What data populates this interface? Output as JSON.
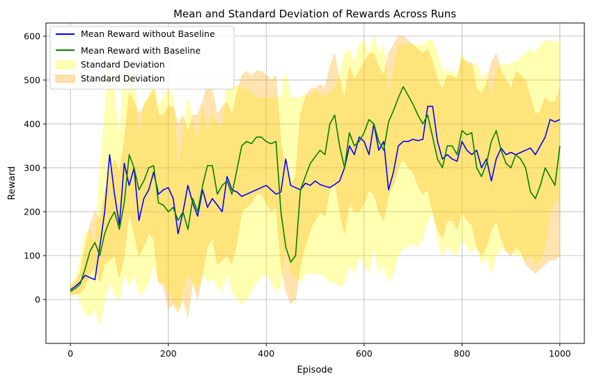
{
  "chart_data": {
    "type": "line",
    "title": "Mean and Standard Deviation of Rewards Across Runs",
    "xlabel": "Episode",
    "ylabel": "Reward",
    "xlim": [
      -50,
      1050
    ],
    "ylim": [
      -100,
      630
    ],
    "xticks": [
      0,
      200,
      400,
      600,
      800,
      1000
    ],
    "yticks": [
      0,
      100,
      200,
      300,
      400,
      500,
      600
    ],
    "grid": true,
    "legend_position": "top-left",
    "series": [
      {
        "name": "Mean Reward without Baseline",
        "kind": "line",
        "color": "#0000ff",
        "x": [
          0,
          10,
          20,
          30,
          40,
          50,
          60,
          70,
          80,
          90,
          100,
          110,
          120,
          130,
          140,
          150,
          160,
          170,
          180,
          190,
          200,
          210,
          220,
          230,
          240,
          250,
          260,
          270,
          280,
          290,
          300,
          310,
          320,
          330,
          340,
          350,
          360,
          370,
          380,
          390,
          400,
          410,
          420,
          430,
          440,
          450,
          460,
          470,
          480,
          490,
          500,
          510,
          520,
          530,
          540,
          550,
          560,
          570,
          580,
          590,
          600,
          610,
          620,
          630,
          640,
          650,
          660,
          670,
          680,
          690,
          700,
          710,
          720,
          730,
          740,
          750,
          760,
          770,
          780,
          790,
          800,
          810,
          820,
          830,
          840,
          850,
          860,
          870,
          880,
          890,
          900,
          910,
          920,
          930,
          940,
          950,
          960,
          970,
          980,
          990,
          1000
        ],
        "y": [
          22,
          30,
          40,
          55,
          50,
          45,
          120,
          200,
          330,
          240,
          170,
          310,
          260,
          300,
          180,
          230,
          250,
          290,
          240,
          250,
          255,
          230,
          150,
          200,
          260,
          220,
          190,
          250,
          210,
          230,
          215,
          200,
          280,
          250,
          245,
          235,
          240,
          245,
          250,
          255,
          260,
          250,
          240,
          245,
          320,
          260,
          255,
          250,
          265,
          260,
          270,
          262,
          258,
          255,
          262,
          270,
          300,
          350,
          330,
          370,
          360,
          330,
          400,
          340,
          360,
          250,
          290,
          350,
          360,
          360,
          365,
          362,
          365,
          440,
          440,
          360,
          320,
          330,
          320,
          315,
          360,
          340,
          330,
          340,
          300,
          320,
          270,
          320,
          345,
          330,
          335,
          330,
          335,
          340,
          345,
          330,
          350,
          370,
          410,
          405,
          410
        ]
      },
      {
        "name": "Mean Reward with Baseline",
        "kind": "line",
        "color": "#008000",
        "x": [
          0,
          10,
          20,
          30,
          40,
          50,
          60,
          70,
          80,
          90,
          100,
          110,
          120,
          130,
          140,
          150,
          160,
          170,
          180,
          190,
          200,
          210,
          220,
          230,
          240,
          250,
          260,
          270,
          280,
          290,
          300,
          310,
          320,
          330,
          340,
          350,
          360,
          370,
          380,
          390,
          400,
          410,
          420,
          430,
          440,
          450,
          460,
          470,
          480,
          490,
          500,
          510,
          520,
          530,
          540,
          550,
          560,
          570,
          580,
          590,
          600,
          610,
          620,
          630,
          640,
          650,
          660,
          670,
          680,
          690,
          700,
          710,
          720,
          730,
          740,
          750,
          760,
          770,
          780,
          790,
          800,
          810,
          820,
          830,
          840,
          850,
          860,
          870,
          880,
          890,
          900,
          910,
          920,
          930,
          940,
          950,
          960,
          970,
          980,
          990,
          1000
        ],
        "y": [
          18,
          25,
          35,
          70,
          110,
          130,
          100,
          150,
          180,
          200,
          160,
          220,
          330,
          300,
          250,
          270,
          300,
          305,
          220,
          215,
          200,
          210,
          180,
          200,
          160,
          230,
          200,
          260,
          305,
          305,
          240,
          260,
          270,
          240,
          295,
          350,
          360,
          355,
          370,
          370,
          360,
          355,
          360,
          200,
          120,
          85,
          100,
          250,
          280,
          310,
          325,
          340,
          330,
          400,
          420,
          350,
          300,
          380,
          350,
          360,
          380,
          410,
          400,
          360,
          340,
          405,
          430,
          460,
          485,
          465,
          445,
          420,
          400,
          420,
          370,
          320,
          300,
          350,
          350,
          330,
          385,
          375,
          380,
          300,
          280,
          310,
          360,
          385,
          340,
          310,
          300,
          330,
          320,
          300,
          245,
          230,
          260,
          300,
          280,
          260,
          350
        ]
      },
      {
        "name": "Standard Deviation",
        "kind": "band",
        "color": "#ffff00",
        "opacity": 0.3,
        "x": [
          0,
          10,
          20,
          30,
          40,
          50,
          60,
          70,
          80,
          90,
          100,
          110,
          120,
          130,
          140,
          150,
          160,
          170,
          180,
          190,
          200,
          210,
          220,
          230,
          240,
          250,
          260,
          270,
          280,
          290,
          300,
          310,
          320,
          330,
          340,
          350,
          360,
          370,
          380,
          390,
          400,
          410,
          420,
          430,
          440,
          450,
          460,
          470,
          480,
          490,
          500,
          510,
          520,
          530,
          540,
          550,
          560,
          570,
          580,
          590,
          600,
          610,
          620,
          630,
          640,
          650,
          660,
          670,
          680,
          690,
          700,
          710,
          720,
          730,
          740,
          750,
          760,
          770,
          780,
          790,
          800,
          810,
          820,
          830,
          840,
          850,
          860,
          870,
          880,
          890,
          900,
          910,
          920,
          930,
          940,
          950,
          960,
          970,
          980,
          990,
          1000
        ],
        "lower": [
          10,
          15,
          0,
          -30,
          -40,
          -20,
          -60,
          0,
          40,
          10,
          0,
          60,
          30,
          60,
          10,
          20,
          40,
          80,
          40,
          40,
          20,
          0,
          -20,
          20,
          60,
          40,
          20,
          60,
          40,
          50,
          30,
          20,
          60,
          20,
          0,
          -10,
          0,
          20,
          40,
          50,
          60,
          40,
          20,
          30,
          120,
          60,
          50,
          40,
          60,
          60,
          60,
          60,
          50,
          40,
          40,
          30,
          40,
          80,
          60,
          100,
          80,
          60,
          120,
          60,
          80,
          40,
          60,
          100,
          120,
          120,
          130,
          120,
          140,
          180,
          200,
          140,
          100,
          120,
          110,
          100,
          140,
          120,
          110,
          120,
          80,
          100,
          60,
          100,
          120,
          110,
          110,
          100,
          100,
          90,
          100,
          80,
          90,
          120,
          200,
          220,
          230
        ],
        "upper": [
          35,
          50,
          90,
          150,
          160,
          120,
          300,
          420,
          570,
          470,
          360,
          560,
          500,
          540,
          360,
          450,
          460,
          500,
          440,
          460,
          480,
          460,
          300,
          380,
          460,
          400,
          360,
          440,
          380,
          420,
          400,
          390,
          500,
          480,
          490,
          480,
          480,
          470,
          460,
          460,
          460,
          460,
          460,
          460,
          520,
          460,
          460,
          460,
          470,
          460,
          480,
          464,
          466,
          470,
          484,
          510,
          560,
          570,
          540,
          580,
          590,
          560,
          600,
          560,
          580,
          460,
          520,
          580,
          580,
          580,
          580,
          580,
          580,
          590,
          590,
          560,
          520,
          520,
          520,
          510,
          560,
          540,
          530,
          540,
          500,
          520,
          460,
          520,
          540,
          530,
          540,
          540,
          550,
          560,
          570,
          560,
          580,
          590,
          590,
          585,
          590
        ]
      },
      {
        "name": "Standard Deviation",
        "kind": "band",
        "color": "#ffa500",
        "opacity": 0.3,
        "x": [
          0,
          10,
          20,
          30,
          40,
          50,
          60,
          70,
          80,
          90,
          100,
          110,
          120,
          130,
          140,
          150,
          160,
          170,
          180,
          190,
          200,
          210,
          220,
          230,
          240,
          250,
          260,
          270,
          280,
          290,
          300,
          310,
          320,
          330,
          340,
          350,
          360,
          370,
          380,
          390,
          400,
          410,
          420,
          430,
          440,
          450,
          460,
          470,
          480,
          490,
          500,
          510,
          520,
          530,
          540,
          550,
          560,
          570,
          580,
          590,
          600,
          610,
          620,
          630,
          640,
          650,
          660,
          670,
          680,
          690,
          700,
          710,
          720,
          730,
          740,
          750,
          760,
          770,
          780,
          790,
          800,
          810,
          820,
          830,
          840,
          850,
          860,
          870,
          880,
          890,
          900,
          910,
          920,
          930,
          940,
          950,
          960,
          970,
          980,
          990,
          1000
        ],
        "lower": [
          10,
          12,
          15,
          30,
          60,
          70,
          40,
          80,
          90,
          100,
          50,
          100,
          200,
          150,
          100,
          120,
          150,
          140,
          40,
          30,
          -20,
          -10,
          -30,
          0,
          -40,
          40,
          0,
          60,
          120,
          140,
          80,
          90,
          100,
          80,
          130,
          200,
          210,
          220,
          240,
          240,
          220,
          200,
          210,
          80,
          20,
          -10,
          0,
          80,
          120,
          160,
          180,
          200,
          190,
          250,
          270,
          200,
          150,
          220,
          200,
          200,
          220,
          250,
          240,
          200,
          180,
          240,
          260,
          300,
          320,
          300,
          290,
          260,
          240,
          250,
          200,
          160,
          140,
          180,
          180,
          160,
          200,
          180,
          170,
          120,
          100,
          120,
          160,
          180,
          140,
          110,
          100,
          120,
          110,
          80,
          70,
          60,
          70,
          80,
          90,
          90,
          100
        ],
        "upper": [
          30,
          40,
          60,
          120,
          170,
          200,
          180,
          240,
          290,
          320,
          290,
          360,
          470,
          450,
          420,
          440,
          460,
          480,
          420,
          420,
          440,
          440,
          400,
          420,
          380,
          420,
          420,
          450,
          490,
          480,
          420,
          440,
          450,
          420,
          470,
          510,
          520,
          510,
          520,
          520,
          510,
          500,
          510,
          360,
          300,
          260,
          280,
          420,
          460,
          480,
          480,
          490,
          480,
          530,
          560,
          500,
          460,
          530,
          500,
          520,
          540,
          560,
          560,
          530,
          510,
          560,
          580,
          600,
          600,
          590,
          580,
          570,
          560,
          570,
          540,
          500,
          480,
          510,
          510,
          500,
          550,
          540,
          540,
          480,
          470,
          490,
          540,
          560,
          520,
          500,
          480,
          520,
          510,
          500,
          460,
          420,
          430,
          460,
          450,
          450,
          480
        ]
      }
    ]
  }
}
